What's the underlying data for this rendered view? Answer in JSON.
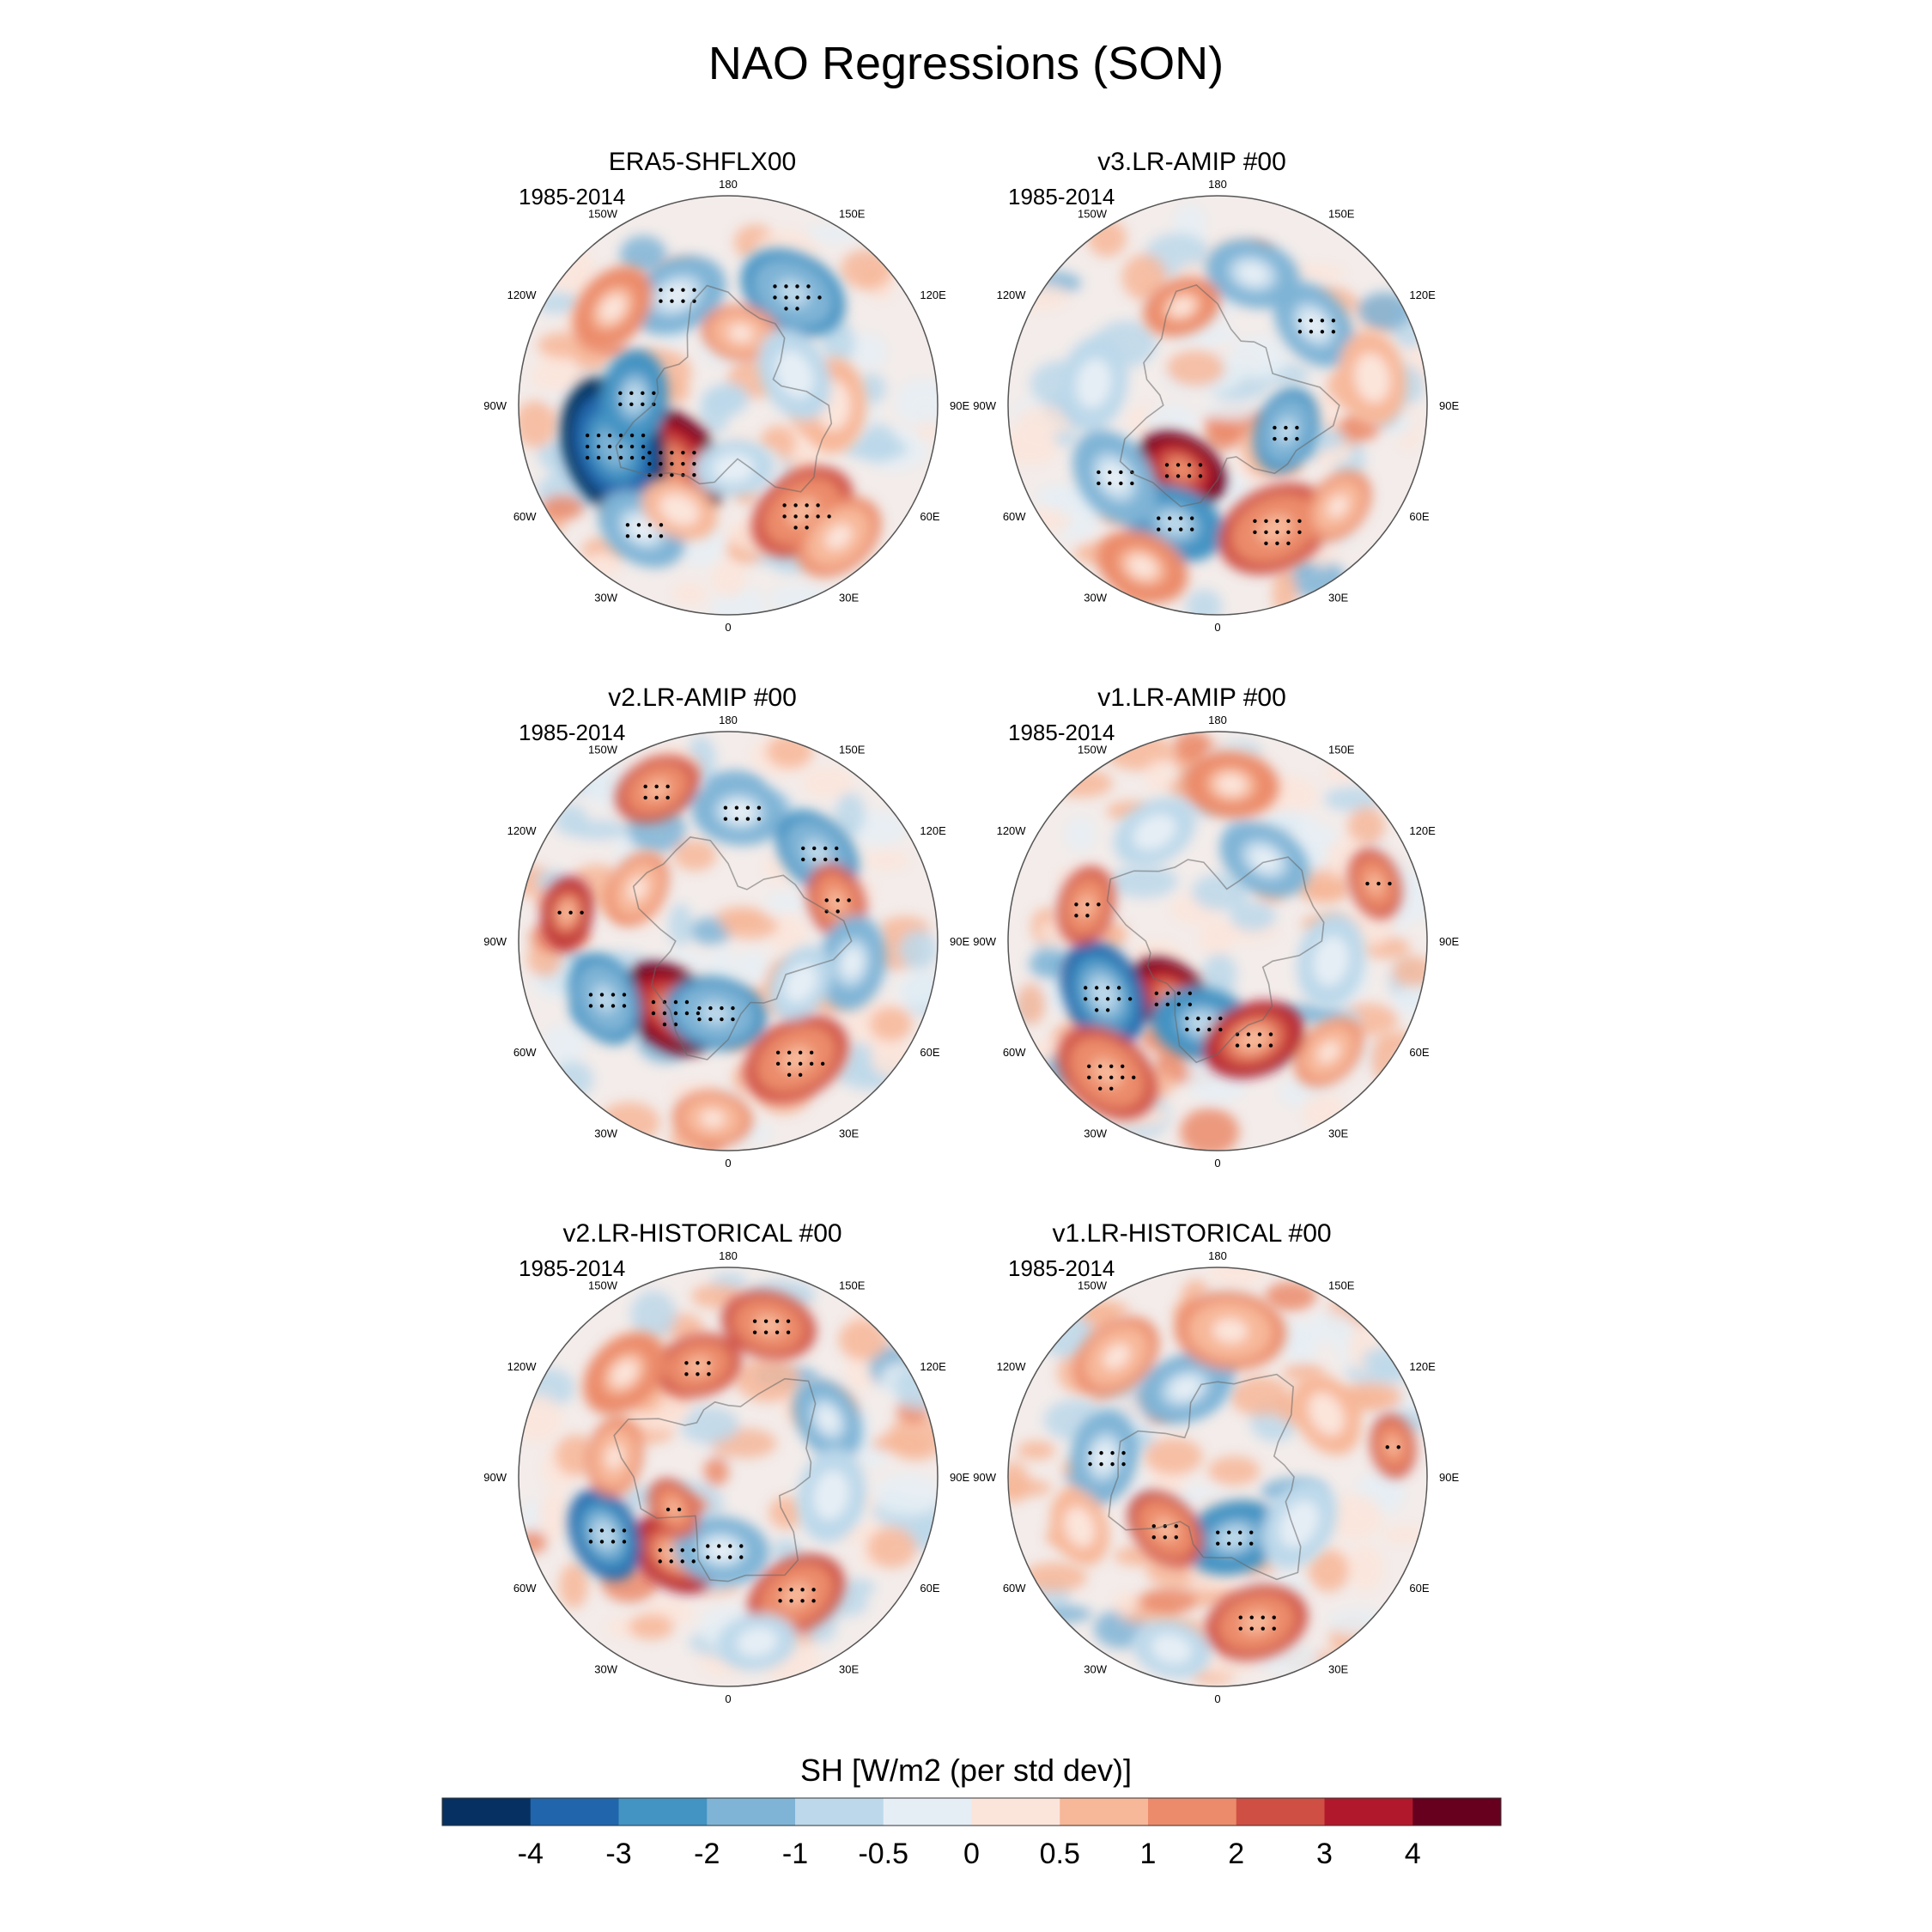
{
  "title": "NAO Regressions (SON)",
  "chart_data": {
    "type": "heatmap",
    "projection": "north polar stereographic",
    "title": "NAO Regressions (SON)",
    "colorbar": {
      "title": "SH [W/m2 (per std dev)]",
      "levels": [
        -4,
        -3,
        -2,
        -1,
        -0.5,
        0,
        0.5,
        1,
        2,
        3,
        4
      ],
      "tick_labels": [
        "-4",
        "-3",
        "-2",
        "-1",
        "-0.5",
        "0",
        "0.5",
        "1",
        "2",
        "3",
        "4"
      ],
      "colors": [
        "#053061",
        "#2166ac",
        "#4393c3",
        "#7fb4d6",
        "#bcd8ea",
        "#e6eef5",
        "#fbe5db",
        "#f7b799",
        "#eb8b6b",
        "#cf4f45",
        "#b2182b",
        "#67001f"
      ]
    },
    "longitude_labels": [
      "180",
      "150E",
      "120E",
      "90E",
      "60E",
      "30E",
      "0",
      "30W",
      "60W",
      "90W",
      "120W",
      "150W"
    ],
    "panels": [
      {
        "title": "ERA5-SHFLX00",
        "period": "1985-2014",
        "features": [
          {
            "lon": -45,
            "r": 0.38,
            "value": 4.5,
            "size": 0.16
          },
          {
            "lon": -70,
            "r": 0.58,
            "value": -4.5,
            "size": 0.18
          },
          {
            "lon": -95,
            "r": 0.45,
            "value": -3.0,
            "size": 0.12
          },
          {
            "lon": -35,
            "r": 0.72,
            "value": -2.0,
            "size": 0.12
          },
          {
            "lon": 35,
            "r": 0.62,
            "value": 2.0,
            "size": 0.14
          },
          {
            "lon": 40,
            "r": 0.82,
            "value": 1.0,
            "size": 0.12
          },
          {
            "lon": 150,
            "r": 0.62,
            "value": -2.5,
            "size": 0.14
          },
          {
            "lon": -155,
            "r": 0.58,
            "value": -2.0,
            "size": 0.13
          },
          {
            "lon": -130,
            "r": 0.72,
            "value": 1.5,
            "size": 0.12
          },
          {
            "lon": 170,
            "r": 0.35,
            "value": 1.0,
            "size": 0.1
          },
          {
            "lon": 90,
            "r": 0.5,
            "value": 0.7,
            "size": 0.12
          },
          {
            "lon": 115,
            "r": 0.35,
            "value": -0.8,
            "size": 0.12
          },
          {
            "lon": -25,
            "r": 0.55,
            "value": 0.7,
            "size": 0.1
          },
          {
            "lon": 5,
            "r": 0.3,
            "value": -0.8,
            "size": 0.1
          }
        ]
      },
      {
        "title": "v3.LR-AMIP  #00",
        "period": "1985-2014",
        "features": [
          {
            "lon": -30,
            "r": 0.35,
            "value": 4.0,
            "size": 0.12
          },
          {
            "lon": -20,
            "r": 0.6,
            "value": -3.0,
            "size": 0.13
          },
          {
            "lon": -55,
            "r": 0.6,
            "value": -2.0,
            "size": 0.13
          },
          {
            "lon": 25,
            "r": 0.65,
            "value": 2.0,
            "size": 0.15
          },
          {
            "lon": -25,
            "r": 0.85,
            "value": 1.5,
            "size": 0.12
          },
          {
            "lon": 70,
            "r": 0.35,
            "value": -2.5,
            "size": 0.11
          },
          {
            "lon": 130,
            "r": 0.6,
            "value": -2.0,
            "size": 0.12
          },
          {
            "lon": 165,
            "r": 0.65,
            "value": -1.5,
            "size": 0.12
          },
          {
            "lon": -160,
            "r": 0.5,
            "value": 1.5,
            "size": 0.1
          },
          {
            "lon": -100,
            "r": 0.6,
            "value": -1.0,
            "size": 0.12
          },
          {
            "lon": 100,
            "r": 0.75,
            "value": 0.8,
            "size": 0.12
          },
          {
            "lon": 50,
            "r": 0.75,
            "value": 1.0,
            "size": 0.1
          }
        ]
      },
      {
        "title": "v2.LR-AMIP  #00",
        "period": "1985-2014",
        "features": [
          {
            "lon": -40,
            "r": 0.42,
            "value": 4.0,
            "size": 0.14
          },
          {
            "lon": -10,
            "r": 0.35,
            "value": -2.5,
            "size": 0.13
          },
          {
            "lon": -65,
            "r": 0.65,
            "value": -2.5,
            "size": 0.12
          },
          {
            "lon": -100,
            "r": 0.78,
            "value": 3.0,
            "size": 0.09
          },
          {
            "lon": 30,
            "r": 0.65,
            "value": 2.0,
            "size": 0.14
          },
          {
            "lon": -155,
            "r": 0.8,
            "value": 2.0,
            "size": 0.11
          },
          {
            "lon": 175,
            "r": 0.62,
            "value": -2.0,
            "size": 0.12
          },
          {
            "lon": 135,
            "r": 0.6,
            "value": -2.5,
            "size": 0.12
          },
          {
            "lon": 110,
            "r": 0.55,
            "value": 2.0,
            "size": 0.1
          },
          {
            "lon": 80,
            "r": 0.6,
            "value": -1.5,
            "size": 0.12
          },
          {
            "lon": -120,
            "r": 0.5,
            "value": 1.0,
            "size": 0.1
          },
          {
            "lon": -5,
            "r": 0.85,
            "value": 1.0,
            "size": 0.1
          },
          {
            "lon": 60,
            "r": 0.4,
            "value": -1.0,
            "size": 0.1
          }
        ]
      },
      {
        "title": "v1.LR-AMIP  #00",
        "period": "1985-2014",
        "features": [
          {
            "lon": -40,
            "r": 0.35,
            "value": 4.0,
            "size": 0.12
          },
          {
            "lon": -65,
            "r": 0.6,
            "value": -3.5,
            "size": 0.14
          },
          {
            "lon": -10,
            "r": 0.4,
            "value": -3.0,
            "size": 0.13
          },
          {
            "lon": 20,
            "r": 0.5,
            "value": 3.0,
            "size": 0.13
          },
          {
            "lon": -40,
            "r": 0.82,
            "value": 2.0,
            "size": 0.14
          },
          {
            "lon": 110,
            "r": 0.8,
            "value": 2.5,
            "size": 0.09
          },
          {
            "lon": 150,
            "r": 0.45,
            "value": -1.5,
            "size": 0.12
          },
          {
            "lon": 175,
            "r": 0.75,
            "value": 1.5,
            "size": 0.12
          },
          {
            "lon": -105,
            "r": 0.65,
            "value": 2.0,
            "size": 0.1
          },
          {
            "lon": 80,
            "r": 0.55,
            "value": -1.0,
            "size": 0.12
          },
          {
            "lon": -150,
            "r": 0.6,
            "value": -1.0,
            "size": 0.11
          },
          {
            "lon": 45,
            "r": 0.75,
            "value": 1.0,
            "size": 0.1
          }
        ]
      },
      {
        "title": "v2.LR-HISTORICAL  #00",
        "period": "1985-2014",
        "features": [
          {
            "lon": -35,
            "r": 0.45,
            "value": 3.5,
            "size": 0.12
          },
          {
            "lon": -65,
            "r": 0.65,
            "value": -3.5,
            "size": 0.12
          },
          {
            "lon": -5,
            "r": 0.35,
            "value": -2.0,
            "size": 0.12
          },
          {
            "lon": 30,
            "r": 0.65,
            "value": 2.0,
            "size": 0.13
          },
          {
            "lon": -60,
            "r": 0.3,
            "value": 2.0,
            "size": 0.08
          },
          {
            "lon": 165,
            "r": 0.75,
            "value": 2.0,
            "size": 0.12
          },
          {
            "lon": -165,
            "r": 0.55,
            "value": 2.0,
            "size": 0.11
          },
          {
            "lon": -135,
            "r": 0.7,
            "value": 1.5,
            "size": 0.12
          },
          {
            "lon": 120,
            "r": 0.55,
            "value": -1.5,
            "size": 0.11
          },
          {
            "lon": 80,
            "r": 0.5,
            "value": -1.0,
            "size": 0.12
          },
          {
            "lon": -100,
            "r": 0.55,
            "value": 1.0,
            "size": 0.1
          },
          {
            "lon": 10,
            "r": 0.8,
            "value": -1.0,
            "size": 0.1
          }
        ]
      },
      {
        "title": "v1.LR-HISTORICAL  #00",
        "period": "1985-2014",
        "features": [
          {
            "lon": 15,
            "r": 0.3,
            "value": -3.0,
            "size": 0.13
          },
          {
            "lon": -45,
            "r": 0.35,
            "value": 2.5,
            "size": 0.11
          },
          {
            "lon": 15,
            "r": 0.72,
            "value": 2.0,
            "size": 0.13
          },
          {
            "lon": -100,
            "r": 0.55,
            "value": -2.0,
            "size": 0.12
          },
          {
            "lon": -160,
            "r": 0.45,
            "value": -1.5,
            "size": 0.12
          },
          {
            "lon": 100,
            "r": 0.85,
            "value": 2.0,
            "size": 0.08
          },
          {
            "lon": 175,
            "r": 0.7,
            "value": 1.0,
            "size": 0.14
          },
          {
            "lon": -140,
            "r": 0.75,
            "value": 1.0,
            "size": 0.12
          },
          {
            "lon": 60,
            "r": 0.45,
            "value": -1.0,
            "size": 0.12
          },
          {
            "lon": 120,
            "r": 0.6,
            "value": 0.8,
            "size": 0.11
          },
          {
            "lon": -70,
            "r": 0.7,
            "value": 0.7,
            "size": 0.1
          },
          {
            "lon": -15,
            "r": 0.85,
            "value": -0.8,
            "size": 0.1
          }
        ]
      }
    ]
  }
}
